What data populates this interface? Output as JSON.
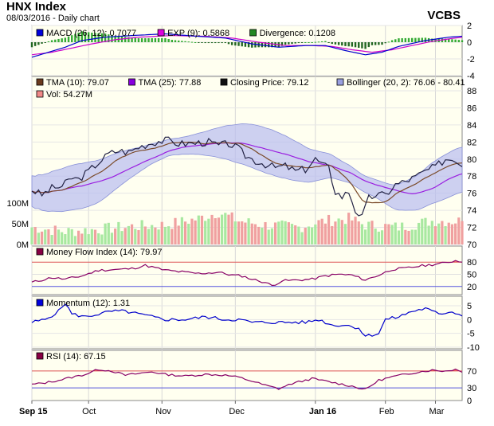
{
  "header": {
    "title": "HNX Index",
    "subtitle": "08/03/2016 - Daily chart",
    "brand": "VCBS"
  },
  "colors": {
    "panel_bg": "#fffff0",
    "border": "#888888",
    "macd": "#0000cc",
    "exp": "#cc00cc",
    "divergence_pos": "#339933",
    "divergence_neg": "#336633",
    "tma10": "#7a4a28",
    "tma25": "#9a1ee0",
    "close": "#222244",
    "bollinger": "#9aa0e0",
    "vol_up": "#a8e8a0",
    "vol_down": "#f0a0a0",
    "mfi": "#880066",
    "momentum": "#0000cc",
    "rsi": "#880066",
    "level_high": "#dd5555",
    "level_low": "#5555dd",
    "fill_high": "#ee4444",
    "fill_low": "#4444cc"
  },
  "legends": {
    "macd": [
      {
        "icon": "blue-square-icon",
        "color": "#0000dd",
        "text": "MACD (26, 12): 0.7077"
      },
      {
        "icon": "magenta-square-icon",
        "color": "#dd00dd",
        "text": "EXP (9): 0.5868"
      },
      {
        "icon": "green-square-icon",
        "color": "#228822",
        "text": "Divergence: 0.1208"
      }
    ],
    "price": [
      {
        "icon": "brown-square-icon",
        "color": "#6b3a1e",
        "text": "TMA (10): 79.07"
      },
      {
        "icon": "purple-square-icon",
        "color": "#8800dd",
        "text": "TMA (25): 77.88"
      },
      {
        "icon": "black-square-icon",
        "color": "#111111",
        "text": "Closing Price: 79.12"
      },
      {
        "icon": "lavender-square-icon",
        "color": "#9aa0e0",
        "text": "Bollinger (20, 2): 76.06 - 80.41"
      }
    ],
    "price2": [
      {
        "icon": "pink-square-icon",
        "color": "#f08888",
        "text": "Vol: 54.27M"
      }
    ],
    "mfi": [
      {
        "icon": "maroon-square-icon",
        "color": "#880044",
        "text": "Money Flow Index (14): 79.97"
      }
    ],
    "momentum": [
      {
        "icon": "blue-square-icon",
        "color": "#0000dd",
        "text": "Momentum (12): 1.31"
      }
    ],
    "rsi": [
      {
        "icon": "maroon-square-icon",
        "color": "#880044",
        "text": "RSI (14): 67.15"
      }
    ]
  },
  "chart_data": {
    "type": "line",
    "title": "HNX Index",
    "x_labels": [
      "Sep 15",
      "Oct",
      "Nov",
      "Dec",
      "Jan 16",
      "Feb",
      "Mar"
    ],
    "x_label_index": [
      0,
      17,
      39,
      61,
      85,
      106,
      121
    ],
    "n_points": 130,
    "price": {
      "ylim": [
        70,
        88
      ],
      "yticks": [
        "70",
        "72",
        "74",
        "76",
        "78",
        "80",
        "82",
        "84",
        "86",
        "88"
      ],
      "close_anchors": [
        [
          0,
          76.4
        ],
        [
          3,
          75.8
        ],
        [
          6,
          76.6
        ],
        [
          9,
          76.8
        ],
        [
          12,
          77.8
        ],
        [
          14,
          77.6
        ],
        [
          17,
          78.6
        ],
        [
          20,
          79.6
        ],
        [
          23,
          80.6
        ],
        [
          26,
          81.0
        ],
        [
          29,
          80.8
        ],
        [
          32,
          81.4
        ],
        [
          35,
          81.8
        ],
        [
          38,
          82.1
        ],
        [
          41,
          82.2
        ],
        [
          44,
          81.8
        ],
        [
          47,
          81.8
        ],
        [
          50,
          81.9
        ],
        [
          53,
          82.0
        ],
        [
          56,
          81.6
        ],
        [
          59,
          81.8
        ],
        [
          62,
          81.2
        ],
        [
          64,
          80.4
        ],
        [
          67,
          79.8
        ],
        [
          70,
          79.4
        ],
        [
          73,
          79.0
        ],
        [
          76,
          79.2
        ],
        [
          79,
          78.6
        ],
        [
          82,
          78.8
        ],
        [
          85,
          80.0
        ],
        [
          87,
          79.4
        ],
        [
          89,
          78.9
        ],
        [
          91,
          76.2
        ],
        [
          93,
          75.6
        ],
        [
          95,
          76.2
        ],
        [
          97,
          74.0
        ],
        [
          99,
          73.2
        ],
        [
          101,
          75.4
        ],
        [
          103,
          75.8
        ],
        [
          106,
          75.8
        ],
        [
          109,
          77.0
        ],
        [
          112,
          77.4
        ],
        [
          115,
          77.9
        ],
        [
          118,
          78.6
        ],
        [
          121,
          79.1
        ],
        [
          124,
          80.0
        ],
        [
          127,
          80.0
        ],
        [
          129,
          79.1
        ]
      ],
      "series": [
        {
          "name": "TMA (10)",
          "last": 79.07
        },
        {
          "name": "TMA (25)",
          "last": 77.88
        },
        {
          "name": "Closing Price",
          "last": 79.12
        },
        {
          "name": "Bollinger (20, 2)",
          "lower_last": 76.06,
          "upper_last": 80.41
        }
      ]
    },
    "volume": {
      "yticks": [
        "0M",
        "50M",
        "100M"
      ],
      "ylim": [
        0,
        100
      ],
      "anchors": [
        [
          0,
          40
        ],
        [
          10,
          30
        ],
        [
          20,
          35
        ],
        [
          30,
          42
        ],
        [
          40,
          45
        ],
        [
          50,
          60
        ],
        [
          56,
          75
        ],
        [
          62,
          55
        ],
        [
          70,
          45
        ],
        [
          80,
          40
        ],
        [
          88,
          55
        ],
        [
          95,
          60
        ],
        [
          100,
          45
        ],
        [
          110,
          40
        ],
        [
          120,
          55
        ],
        [
          129,
          54.27
        ]
      ],
      "last": 54.27
    },
    "macd": {
      "ylim": [
        -4,
        2
      ],
      "yticks": [
        "-4",
        "-2",
        "0",
        "2"
      ],
      "macd_anchors": [
        [
          0,
          -1.8
        ],
        [
          5,
          -1.2
        ],
        [
          10,
          -0.6
        ],
        [
          15,
          0.2
        ],
        [
          22,
          0.6
        ],
        [
          30,
          0.8
        ],
        [
          40,
          1.0
        ],
        [
          50,
          0.7
        ],
        [
          58,
          0.5
        ],
        [
          66,
          -0.2
        ],
        [
          74,
          -0.6
        ],
        [
          82,
          -0.4
        ],
        [
          88,
          -0.4
        ],
        [
          94,
          -1.0
        ],
        [
          100,
          -1.5
        ],
        [
          105,
          -1.2
        ],
        [
          110,
          -0.5
        ],
        [
          118,
          0.2
        ],
        [
          125,
          0.6
        ],
        [
          129,
          0.71
        ]
      ],
      "exp_anchors": [
        [
          0,
          -1.5
        ],
        [
          6,
          -1.2
        ],
        [
          12,
          -0.7
        ],
        [
          18,
          -0.2
        ],
        [
          25,
          0.3
        ],
        [
          32,
          0.6
        ],
        [
          42,
          0.8
        ],
        [
          52,
          0.7
        ],
        [
          60,
          0.5
        ],
        [
          68,
          0.0
        ],
        [
          76,
          -0.4
        ],
        [
          84,
          -0.4
        ],
        [
          90,
          -0.5
        ],
        [
          96,
          -0.9
        ],
        [
          102,
          -1.2
        ],
        [
          108,
          -0.9
        ],
        [
          114,
          -0.4
        ],
        [
          120,
          0.1
        ],
        [
          126,
          0.45
        ],
        [
          129,
          0.59
        ]
      ],
      "last": {
        "macd": 0.7077,
        "exp": 0.5868,
        "divergence": 0.1208
      }
    },
    "mfi": {
      "ylim": [
        0,
        100
      ],
      "yticks": [
        "20",
        "50",
        "80"
      ],
      "levels": [
        20,
        80
      ],
      "anchors": [
        [
          0,
          30
        ],
        [
          6,
          42
        ],
        [
          10,
          38
        ],
        [
          15,
          46
        ],
        [
          20,
          60
        ],
        [
          26,
          62
        ],
        [
          30,
          64
        ],
        [
          34,
          72
        ],
        [
          36,
          68
        ],
        [
          40,
          60
        ],
        [
          46,
          55
        ],
        [
          50,
          52
        ],
        [
          56,
          55
        ],
        [
          60,
          48
        ],
        [
          63,
          46
        ],
        [
          66,
          38
        ],
        [
          70,
          30
        ],
        [
          72,
          22
        ],
        [
          75,
          34
        ],
        [
          80,
          36
        ],
        [
          84,
          38
        ],
        [
          88,
          46
        ],
        [
          92,
          50
        ],
        [
          96,
          48
        ],
        [
          100,
          36
        ],
        [
          104,
          48
        ],
        [
          108,
          62
        ],
        [
          112,
          65
        ],
        [
          116,
          70
        ],
        [
          120,
          74
        ],
        [
          124,
          78
        ],
        [
          127,
          84
        ],
        [
          129,
          80
        ]
      ],
      "last": 79.97
    },
    "momentum": {
      "ylim": [
        -10,
        5
      ],
      "yticks": [
        "-10",
        "-5",
        "0",
        "5"
      ],
      "anchors": [
        [
          0,
          -1
        ],
        [
          4,
          0
        ],
        [
          8,
          3
        ],
        [
          10,
          6
        ],
        [
          12,
          2
        ],
        [
          16,
          1
        ],
        [
          20,
          2
        ],
        [
          24,
          3
        ],
        [
          28,
          3
        ],
        [
          32,
          2
        ],
        [
          36,
          1
        ],
        [
          40,
          0
        ],
        [
          46,
          0
        ],
        [
          52,
          1
        ],
        [
          58,
          0
        ],
        [
          62,
          0
        ],
        [
          66,
          -1
        ],
        [
          72,
          -1
        ],
        [
          78,
          -1
        ],
        [
          82,
          -1
        ],
        [
          86,
          0
        ],
        [
          90,
          -2
        ],
        [
          94,
          -2
        ],
        [
          98,
          -3
        ],
        [
          100,
          -6
        ],
        [
          104,
          -5
        ],
        [
          106,
          0
        ],
        [
          110,
          1
        ],
        [
          114,
          3
        ],
        [
          118,
          4
        ],
        [
          122,
          2
        ],
        [
          126,
          3
        ],
        [
          129,
          1.3
        ]
      ],
      "last": 1.31
    },
    "rsi": {
      "ylim": [
        0,
        100
      ],
      "yticks": [
        "0",
        "30",
        "70"
      ],
      "levels": [
        30,
        70
      ],
      "anchors": [
        [
          0,
          38
        ],
        [
          4,
          42
        ],
        [
          8,
          48
        ],
        [
          12,
          55
        ],
        [
          16,
          62
        ],
        [
          20,
          74
        ],
        [
          24,
          70
        ],
        [
          28,
          60
        ],
        [
          32,
          64
        ],
        [
          36,
          68
        ],
        [
          40,
          62
        ],
        [
          46,
          58
        ],
        [
          52,
          62
        ],
        [
          58,
          60
        ],
        [
          62,
          55
        ],
        [
          66,
          46
        ],
        [
          70,
          36
        ],
        [
          74,
          28
        ],
        [
          78,
          40
        ],
        [
          84,
          52
        ],
        [
          88,
          46
        ],
        [
          92,
          40
        ],
        [
          96,
          34
        ],
        [
          100,
          26
        ],
        [
          104,
          48
        ],
        [
          108,
          56
        ],
        [
          112,
          62
        ],
        [
          116,
          68
        ],
        [
          120,
          72
        ],
        [
          124,
          70
        ],
        [
          127,
          74
        ],
        [
          129,
          67
        ]
      ],
      "last": 67.15
    }
  }
}
